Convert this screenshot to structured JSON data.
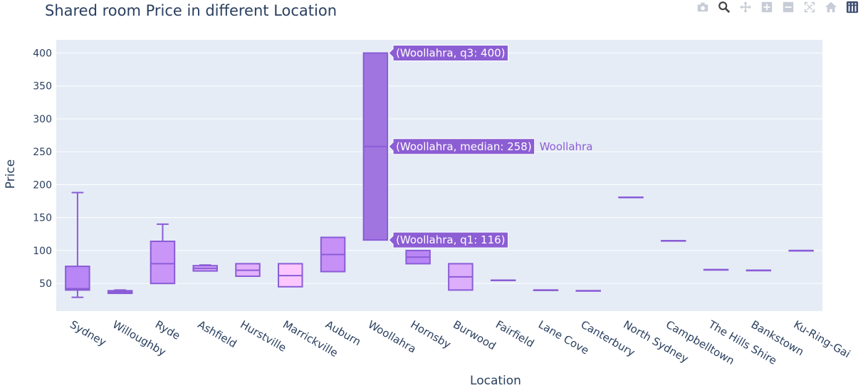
{
  "chart_data": {
    "type": "box",
    "title": "Shared room Price in different Location",
    "xlabel": "Location",
    "ylabel": "Price",
    "ylim": [
      8,
      420
    ],
    "yticks": [
      50,
      100,
      150,
      200,
      250,
      300,
      350,
      400
    ],
    "grid": true,
    "categories": [
      "Sydney",
      "Willoughby",
      "Ryde",
      "Ashfield",
      "Hurstville",
      "Marrickville",
      "Auburn",
      "Woollahra",
      "Hornsby",
      "Burwood",
      "Fairfield",
      "Lane Cove",
      "Canterbury",
      "North Sydney",
      "Campbelltown",
      "The Hills Shire",
      "Bankstown",
      "Ku-Ring-Gai"
    ],
    "boxes": [
      {
        "min": 29,
        "q1": 40,
        "median": 42,
        "q3": 76,
        "max": 188,
        "fill": "#b986f5"
      },
      {
        "min": 35,
        "q1": 35,
        "median": 37,
        "q3": 39,
        "max": 40,
        "fill": "#b986f5"
      },
      {
        "min": 50,
        "q1": 50,
        "median": 80,
        "q3": 114,
        "max": 140,
        "fill": "#c996f8"
      },
      {
        "min": 69,
        "q1": 69,
        "median": 73,
        "q3": 77,
        "max": 78,
        "fill": "#d8a6fa"
      },
      {
        "min": 61,
        "q1": 61,
        "median": 70,
        "q3": 80,
        "max": 80,
        "fill": "#e3b1fc"
      },
      {
        "min": 45,
        "q1": 45,
        "median": 62,
        "q3": 80,
        "max": 80,
        "fill": "#fbc7fe"
      },
      {
        "min": 68,
        "q1": 68,
        "median": 94,
        "q3": 120,
        "max": 120,
        "fill": "#c690f7"
      },
      {
        "min": 116,
        "q1": 116,
        "median": 258,
        "q3": 400,
        "max": 400,
        "fill": "#a075e0"
      },
      {
        "min": 80,
        "q1": 80,
        "median": 90,
        "q3": 100,
        "max": 100,
        "fill": "#b986f5"
      },
      {
        "min": 40,
        "q1": 40,
        "median": 60,
        "q3": 80,
        "max": 80,
        "fill": "#dcaefb"
      },
      {
        "min": 55,
        "q1": 55,
        "median": 55,
        "q3": 55,
        "max": 55,
        "fill": "#b986f5"
      },
      {
        "min": 40,
        "q1": 40,
        "median": 40,
        "q3": 40,
        "max": 40,
        "fill": "#b986f5"
      },
      {
        "min": 39,
        "q1": 39,
        "median": 39,
        "q3": 39,
        "max": 39,
        "fill": "#b986f5"
      },
      {
        "min": 181,
        "q1": 181,
        "median": 181,
        "q3": 181,
        "max": 181,
        "fill": "#b986f5"
      },
      {
        "min": 115,
        "q1": 115,
        "median": 115,
        "q3": 115,
        "max": 115,
        "fill": "#b986f5"
      },
      {
        "min": 71,
        "q1": 71,
        "median": 71,
        "q3": 71,
        "max": 71,
        "fill": "#b986f5"
      },
      {
        "min": 70,
        "q1": 70,
        "median": 70,
        "q3": 70,
        "max": 70,
        "fill": "#b986f5"
      },
      {
        "min": 100,
        "q1": 100,
        "median": 100,
        "q3": 100,
        "max": 100,
        "fill": "#b986f5"
      }
    ],
    "hover": {
      "category": "Woollahra",
      "labels": [
        {
          "stat": "q3",
          "text": "(Woollahra, q3: 400)"
        },
        {
          "stat": "median",
          "text": "(Woollahra, median: 258)"
        },
        {
          "stat": "q1",
          "text": "(Woollahra, q1: 116)"
        }
      ],
      "trace_name": "Woollahra"
    },
    "colors": {
      "plot_bg": "#e5ecf6",
      "grid": "#ffffff",
      "line": "#8a5cd6",
      "text": "#2a3f5f",
      "hover_bg": "#8c5ed3"
    }
  },
  "modebar": {
    "icons": [
      "camera-icon",
      "zoom-icon",
      "pan-icon",
      "zoom-in-icon",
      "zoom-out-icon",
      "autoscale-icon",
      "home-icon",
      "plotly-logo-icon"
    ]
  }
}
